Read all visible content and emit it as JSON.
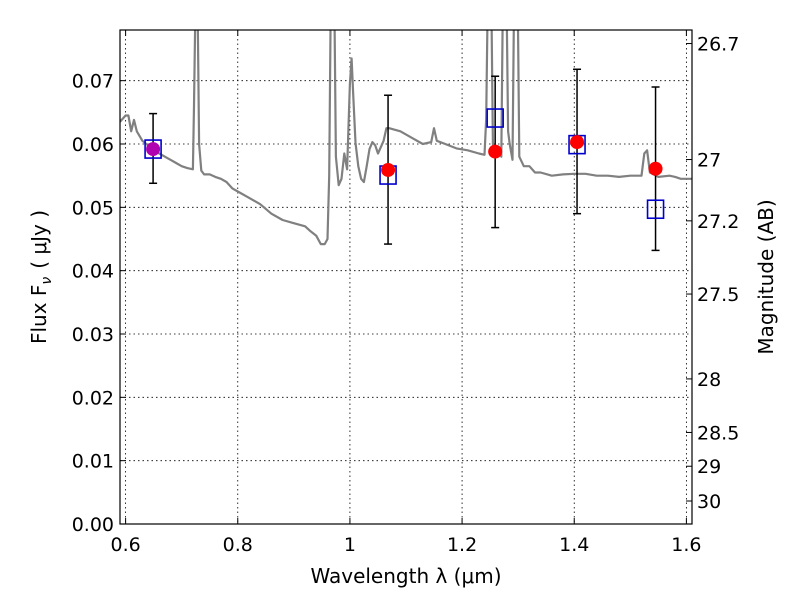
{
  "chart_data": {
    "type": "scatter",
    "xlabel": "Wavelength  λ (μm)",
    "ylabel": "Flux  F",
    "ylabel_sub": "ν",
    "ylabel_unit": "( μJy )",
    "y2label": "Magnitude (AB)",
    "xlim": [
      0.59,
      1.61
    ],
    "ylim": [
      0.0,
      0.078
    ],
    "grid": true,
    "x_ticks": [
      {
        "value": 0.6,
        "label": "0.6"
      },
      {
        "value": 0.8,
        "label": "0.8"
      },
      {
        "value": 1.0,
        "label": "1"
      },
      {
        "value": 1.2,
        "label": "1.2"
      },
      {
        "value": 1.4,
        "label": "1.4"
      },
      {
        "value": 1.6,
        "label": "1.6"
      }
    ],
    "y_ticks": [
      {
        "value": 0.0,
        "label": "0.00"
      },
      {
        "value": 0.01,
        "label": "0.01"
      },
      {
        "value": 0.02,
        "label": "0.02"
      },
      {
        "value": 0.03,
        "label": "0.03"
      },
      {
        "value": 0.04,
        "label": "0.04"
      },
      {
        "value": 0.05,
        "label": "0.05"
      },
      {
        "value": 0.06,
        "label": "0.06"
      },
      {
        "value": 0.07,
        "label": "0.07"
      }
    ],
    "y2_ticks": [
      {
        "value": 26.7,
        "label": "26.7"
      },
      {
        "value": 27,
        "label": "27"
      },
      {
        "value": 27.2,
        "label": "27.2"
      },
      {
        "value": 27.5,
        "label": "27.5"
      },
      {
        "value": 28,
        "label": "28"
      },
      {
        "value": 28.5,
        "label": "28.5"
      },
      {
        "value": 29,
        "label": "29"
      },
      {
        "value": 30,
        "label": "30"
      }
    ],
    "series": [
      {
        "style": "line",
        "color": "#808080",
        "points": [
          [
            0.59,
            0.0635
          ],
          [
            0.6,
            0.0645
          ],
          [
            0.605,
            0.0645
          ],
          [
            0.61,
            0.062
          ],
          [
            0.615,
            0.0638
          ],
          [
            0.62,
            0.062
          ],
          [
            0.63,
            0.0605
          ],
          [
            0.64,
            0.0598
          ],
          [
            0.65,
            0.059
          ],
          [
            0.66,
            0.0585
          ],
          [
            0.67,
            0.058
          ],
          [
            0.68,
            0.0575
          ],
          [
            0.69,
            0.057
          ],
          [
            0.7,
            0.0565
          ],
          [
            0.71,
            0.0562
          ],
          [
            0.72,
            0.056
          ],
          [
            0.722,
            0.066
          ],
          [
            0.725,
            0.085
          ],
          [
            0.728,
            0.085
          ],
          [
            0.731,
            0.06
          ],
          [
            0.735,
            0.0558
          ],
          [
            0.74,
            0.0552
          ],
          [
            0.75,
            0.0552
          ],
          [
            0.76,
            0.0548
          ],
          [
            0.77,
            0.0545
          ],
          [
            0.78,
            0.054
          ],
          [
            0.79,
            0.053
          ],
          [
            0.8,
            0.0525
          ],
          [
            0.82,
            0.0515
          ],
          [
            0.84,
            0.0505
          ],
          [
            0.86,
            0.049
          ],
          [
            0.88,
            0.048
          ],
          [
            0.9,
            0.0475
          ],
          [
            0.92,
            0.047
          ],
          [
            0.93,
            0.0462
          ],
          [
            0.94,
            0.0455
          ],
          [
            0.948,
            0.0442
          ],
          [
            0.955,
            0.0442
          ],
          [
            0.96,
            0.045
          ],
          [
            0.963,
            0.055
          ],
          [
            0.966,
            0.085
          ],
          [
            0.972,
            0.085
          ],
          [
            0.975,
            0.058
          ],
          [
            0.98,
            0.0535
          ],
          [
            0.985,
            0.0545
          ],
          [
            0.99,
            0.0585
          ],
          [
            0.995,
            0.056
          ],
          [
            1.0,
            0.0695
          ],
          [
            1.003,
            0.0735
          ],
          [
            1.006,
            0.0675
          ],
          [
            1.01,
            0.0602
          ],
          [
            1.015,
            0.0565
          ],
          [
            1.02,
            0.0545
          ],
          [
            1.025,
            0.054
          ],
          [
            1.03,
            0.0565
          ],
          [
            1.035,
            0.0592
          ],
          [
            1.04,
            0.0603
          ],
          [
            1.045,
            0.0598
          ],
          [
            1.05,
            0.0585
          ],
          [
            1.055,
            0.0595
          ],
          [
            1.06,
            0.0605
          ],
          [
            1.065,
            0.0625
          ],
          [
            1.07,
            0.0625
          ],
          [
            1.09,
            0.062
          ],
          [
            1.11,
            0.061
          ],
          [
            1.13,
            0.06
          ],
          [
            1.145,
            0.0603
          ],
          [
            1.15,
            0.0625
          ],
          [
            1.155,
            0.0605
          ],
          [
            1.17,
            0.06
          ],
          [
            1.19,
            0.0593
          ],
          [
            1.21,
            0.059
          ],
          [
            1.23,
            0.0585
          ],
          [
            1.24,
            0.0583
          ],
          [
            1.243,
            0.064
          ],
          [
            1.246,
            0.085
          ],
          [
            1.252,
            0.085
          ],
          [
            1.255,
            0.06
          ],
          [
            1.26,
            0.0588
          ],
          [
            1.265,
            0.059
          ],
          [
            1.27,
            0.058
          ],
          [
            1.273,
            0.085
          ],
          [
            1.279,
            0.085
          ],
          [
            1.282,
            0.062
          ],
          [
            1.285,
            0.06
          ],
          [
            1.29,
            0.0575
          ],
          [
            1.293,
            0.085
          ],
          [
            1.299,
            0.085
          ],
          [
            1.302,
            0.058
          ],
          [
            1.31,
            0.0565
          ],
          [
            1.32,
            0.0565
          ],
          [
            1.33,
            0.0555
          ],
          [
            1.34,
            0.0555
          ],
          [
            1.36,
            0.055
          ],
          [
            1.38,
            0.0552
          ],
          [
            1.4,
            0.0553
          ],
          [
            1.42,
            0.0553
          ],
          [
            1.44,
            0.055
          ],
          [
            1.46,
            0.055
          ],
          [
            1.48,
            0.0548
          ],
          [
            1.5,
            0.055
          ],
          [
            1.52,
            0.055
          ],
          [
            1.525,
            0.0585
          ],
          [
            1.53,
            0.059
          ],
          [
            1.535,
            0.0555
          ],
          [
            1.55,
            0.0548
          ],
          [
            1.57,
            0.055
          ],
          [
            1.58,
            0.0548
          ],
          [
            1.59,
            0.0545
          ],
          [
            1.61,
            0.0545
          ]
        ]
      },
      {
        "style": "errorbar",
        "color": "#000000",
        "points": [
          {
            "x": 0.649,
            "y": 0.0592,
            "low": 0.0538,
            "high": 0.0648
          },
          {
            "x": 1.068,
            "y": 0.0559,
            "low": 0.0442,
            "high": 0.0677
          },
          {
            "x": 1.259,
            "y": 0.0588,
            "low": 0.0468,
            "high": 0.0707
          },
          {
            "x": 1.405,
            "y": 0.0603,
            "low": 0.049,
            "high": 0.0718
          },
          {
            "x": 1.545,
            "y": 0.0561,
            "low": 0.0432,
            "high": 0.069
          }
        ]
      },
      {
        "style": "open-square",
        "color": "#0000cc",
        "points": [
          {
            "x": 0.649,
            "y": 0.0592
          },
          {
            "x": 1.068,
            "y": 0.0551
          },
          {
            "x": 1.259,
            "y": 0.0641
          },
          {
            "x": 1.405,
            "y": 0.0599
          },
          {
            "x": 1.545,
            "y": 0.0497
          }
        ]
      },
      {
        "style": "filled-circle",
        "points": [
          {
            "x": 0.649,
            "y": 0.0592,
            "color": "#b000b0"
          },
          {
            "x": 1.068,
            "y": 0.0559,
            "color": "#ff0000"
          },
          {
            "x": 1.259,
            "y": 0.0588,
            "color": "#ff0000"
          },
          {
            "x": 1.405,
            "y": 0.0603,
            "color": "#ff0000"
          },
          {
            "x": 1.545,
            "y": 0.0561,
            "color": "#ff0000"
          }
        ]
      }
    ]
  }
}
